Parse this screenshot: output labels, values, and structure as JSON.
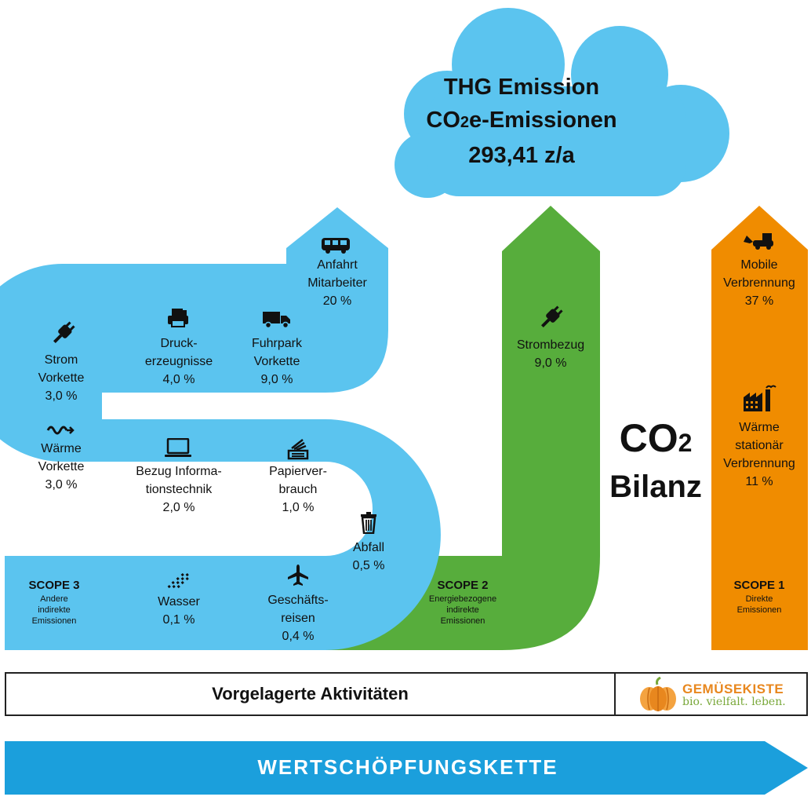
{
  "cloud": {
    "line1": "THG Emission",
    "line2_prefix": "CO",
    "line2_sub": "2",
    "line2_suffix": "e-Emissionen",
    "line3": "293,41 z/a",
    "color": "#5bc4ef"
  },
  "colors": {
    "scope3": "#5bc4ef",
    "scope2": "#57ad3c",
    "scope1": "#f08c00",
    "bottom_arrow": "#1b9fdc"
  },
  "scope3": {
    "title": "SCOPE 3",
    "subtitle": [
      "Andere",
      "indirekte",
      "Emissionen"
    ],
    "items": {
      "anfahrt": {
        "icon": "bus-icon",
        "lines": [
          "Anfahrt",
          "Mitarbeiter"
        ],
        "value": "20 %"
      },
      "druck": {
        "icon": "printer-icon",
        "lines": [
          "Druck-",
          "erzeugnisse"
        ],
        "value": "4,0 %"
      },
      "fuhrpark": {
        "icon": "truck-icon",
        "lines": [
          "Fuhrpark",
          "Vorkette"
        ],
        "value": "9,0 %"
      },
      "strom": {
        "icon": "plug-icon",
        "lines": [
          "Strom",
          "Vorkette"
        ],
        "value": "3,0 %"
      },
      "waerme": {
        "icon": "heat-wave-icon",
        "lines": [
          "Wärme",
          "Vorkette"
        ],
        "value": "3,0 %"
      },
      "it": {
        "icon": "laptop-icon",
        "lines": [
          "Bezug Informa-",
          "tionstechnik"
        ],
        "value": "2,0 %"
      },
      "papier": {
        "icon": "paper-stack-icon",
        "lines": [
          "Papierver-",
          "brauch"
        ],
        "value": "1,0 %"
      },
      "abfall": {
        "icon": "trash-icon",
        "lines": [
          "Abfall"
        ],
        "value": "0,5 %"
      },
      "wasser": {
        "icon": "water-drops-icon",
        "lines": [
          "Wasser"
        ],
        "value": "0,1 %"
      },
      "reisen": {
        "icon": "airplane-icon",
        "lines": [
          "Geschäfts-",
          "reisen"
        ],
        "value": "0,4 %"
      }
    }
  },
  "scope2": {
    "title": "SCOPE 2",
    "subtitle": [
      "Energiebezogene",
      "indirekte",
      "Emissionen"
    ],
    "items": {
      "strombezug": {
        "icon": "plug-icon",
        "lines": [
          "Strombezug"
        ],
        "value": "9,0 %"
      }
    }
  },
  "scope1": {
    "title": "SCOPE 1",
    "subtitle": [
      "Direkte",
      "Emissionen"
    ],
    "items": {
      "mobile": {
        "icon": "excavator-icon",
        "lines": [
          "Mobile",
          "Verbrennung"
        ],
        "value": "37 %"
      },
      "stationaer": {
        "icon": "factory-icon",
        "lines": [
          "Wärme",
          "stationär",
          "Verbrennung"
        ],
        "value": "11 %"
      }
    }
  },
  "co2": {
    "prefix": "CO",
    "sub": "2",
    "word": "Bilanz"
  },
  "bar": {
    "label": "Vorgelagerte Aktivitäten"
  },
  "logo": {
    "name": "GEMÜSEKISTE",
    "tagline": "bio. vielfalt. leben.",
    "icon": "pumpkin-icon"
  },
  "arrow": {
    "label": "WERTSCHÖPFUNGSKETTE"
  }
}
